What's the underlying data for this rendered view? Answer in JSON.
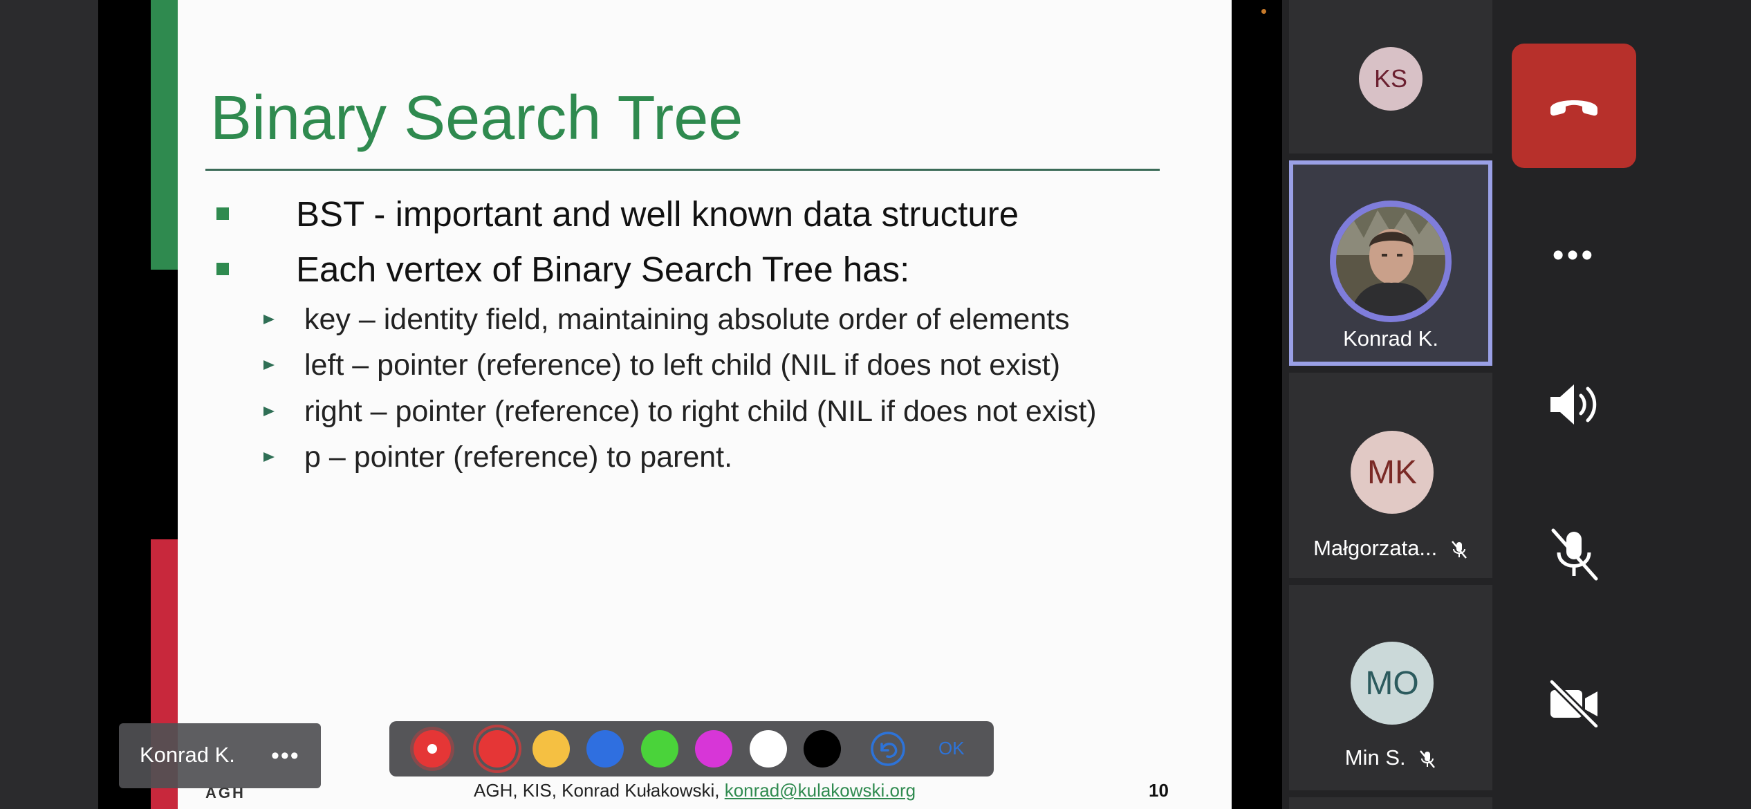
{
  "slide": {
    "title": "Binary Search Tree",
    "bullets": [
      "BST - important and well known data structure",
      "Each vertex of Binary Search Tree has:"
    ],
    "sub_bullets": [
      "key – identity field, maintaining absolute order of elements",
      "left – pointer (reference) to left child (NIL if does not exist)",
      "right – pointer (reference) to right child (NIL if does not exist)",
      "p – pointer (reference) to parent."
    ],
    "footer": {
      "logo": "AGH",
      "credit": "AGH, KIS, Konrad Kułakowski, ",
      "link": "konrad@kulakowski.org",
      "page_number": "10"
    }
  },
  "presenter_tag": {
    "name": "Konrad K.",
    "more": "•••"
  },
  "annotation_toolbar": {
    "colors": [
      "#e53636",
      "#f5c042",
      "#2f6fe0",
      "#4ad33a",
      "#d736d7",
      "#ffffff",
      "#000000"
    ],
    "selected_color": "#e53636",
    "ok_label": "OK"
  },
  "participants": [
    {
      "initials": "KS",
      "name": "",
      "avatar_bg": "#d8c1c6",
      "initials_color": "#6b2030",
      "muted": false
    },
    {
      "initials": "",
      "name": "Konrad K.",
      "avatar_bg": "#6b6453",
      "muted": false,
      "speaking": true
    },
    {
      "initials": "MK",
      "name": "Małgorzata...",
      "avatar_bg": "#e1c9c5",
      "initials_color": "#7a2a26",
      "muted": true
    },
    {
      "initials": "MO",
      "name": "Min S.",
      "avatar_bg": "#cbd9d9",
      "initials_color": "#2c5b5e",
      "muted": true
    }
  ],
  "controls": {
    "more": "•••"
  },
  "colors": {
    "accent_green": "#2f8a4f",
    "end_call_red": "#b7302b",
    "speaker_outline": "#9aa0e6"
  }
}
